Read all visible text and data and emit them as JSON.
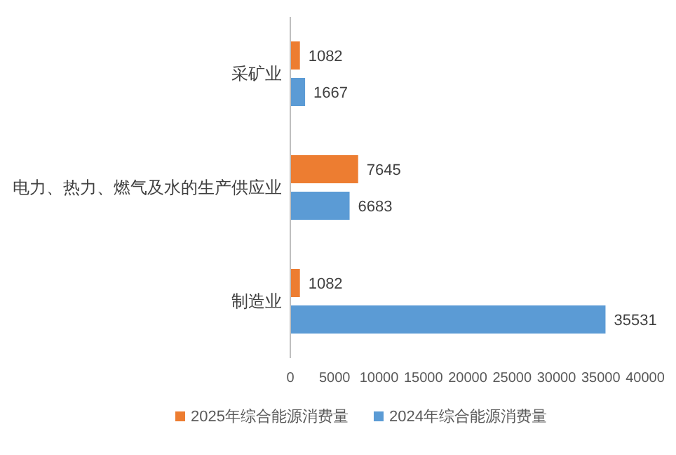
{
  "chart_data": {
    "type": "bar",
    "orientation": "horizontal",
    "categories": [
      "采矿业",
      "电力、热力、燃气及水的生产供应业",
      "制造业"
    ],
    "series": [
      {
        "name": "2025年综合能源消费量",
        "color": "#ed7d31",
        "values": [
          1082,
          7645,
          1082
        ]
      },
      {
        "name": "2024年综合能源消费量",
        "color": "#5b9bd5",
        "values": [
          1667,
          6683,
          35531
        ]
      }
    ],
    "xlim": [
      0,
      40000
    ],
    "xticks": [
      0,
      5000,
      10000,
      15000,
      20000,
      25000,
      30000,
      35000,
      40000
    ],
    "data_labels": true,
    "legend": "bottom",
    "grid": false
  }
}
